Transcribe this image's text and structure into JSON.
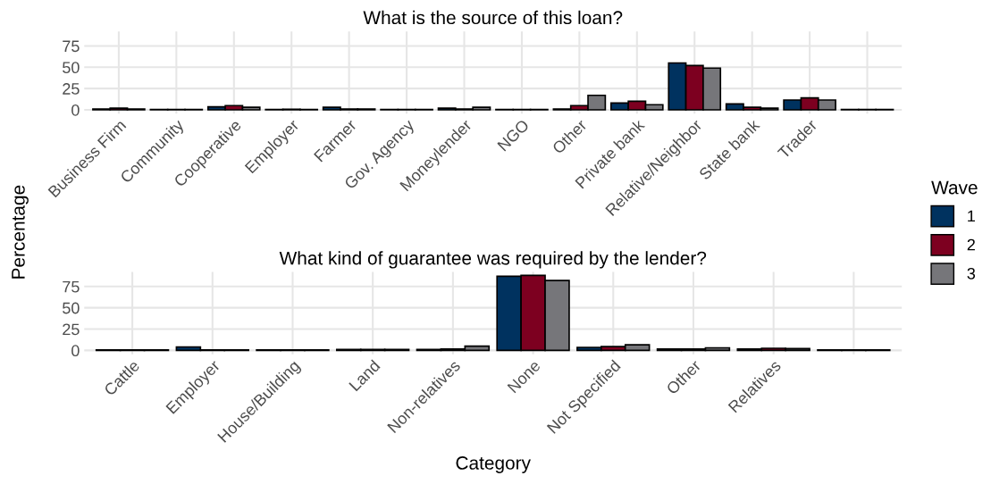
{
  "chart_data": [
    {
      "type": "bar",
      "title": "What is the source of this loan?",
      "ylabel": "Percentage",
      "legend_title": "Wave",
      "legend": "right",
      "grid": true,
      "categories": [
        "Business Firm",
        "Community",
        "Cooperative",
        "Employer",
        "Farmer",
        "Gov. Agency",
        "Moneylender",
        "NGO",
        "Other",
        "Private bank",
        "Relative/Neighbor",
        "State bank",
        "Trader",
        null
      ],
      "ylim": [
        -4.6,
        92
      ],
      "yticks": [
        0,
        25,
        50,
        75
      ],
      "series": [
        {
          "name": "1",
          "color": "#00325f",
          "values": [
            1,
            0.3,
            3.5,
            0.5,
            3,
            0.5,
            2,
            0.5,
            1,
            8,
            55,
            7,
            11.5,
            0.5
          ]
        },
        {
          "name": "2",
          "color": "#7d0020",
          "values": [
            2,
            0.3,
            5,
            0.8,
            1,
            0.3,
            1,
            0.3,
            5,
            10,
            52,
            3,
            14,
            0.3
          ]
        },
        {
          "name": "3",
          "color": "#76767a",
          "values": [
            1,
            0.3,
            3,
            0.5,
            1,
            0.3,
            3,
            0.5,
            17,
            6,
            49,
            2,
            11.5,
            0.3
          ]
        }
      ]
    },
    {
      "type": "bar",
      "title": "What kind of guarantee was required by the lender?",
      "xlabel": "Category",
      "grid": true,
      "categories": [
        "Cattle",
        "Employer",
        "House/Building",
        "Land",
        "Non-relatives",
        "None",
        "Not Specified",
        "Other",
        "Relatives",
        null
      ],
      "ylim": [
        -4.6,
        92
      ],
      "yticks": [
        0,
        25,
        50,
        75
      ],
      "series": [
        {
          "name": "1",
          "color": "#00325f",
          "values": [
            0.5,
            4,
            0.5,
            1,
            1,
            87,
            3.5,
            1.5,
            1.5,
            0.5
          ]
        },
        {
          "name": "2",
          "color": "#7d0020",
          "values": [
            0.5,
            0.5,
            0.5,
            1,
            1.5,
            88,
            4.5,
            1.5,
            2.5,
            0.5
          ]
        },
        {
          "name": "3",
          "color": "#76767a",
          "values": [
            0.5,
            0.5,
            0.5,
            1,
            5,
            82,
            6.5,
            3,
            2,
            0.5
          ]
        }
      ]
    }
  ]
}
